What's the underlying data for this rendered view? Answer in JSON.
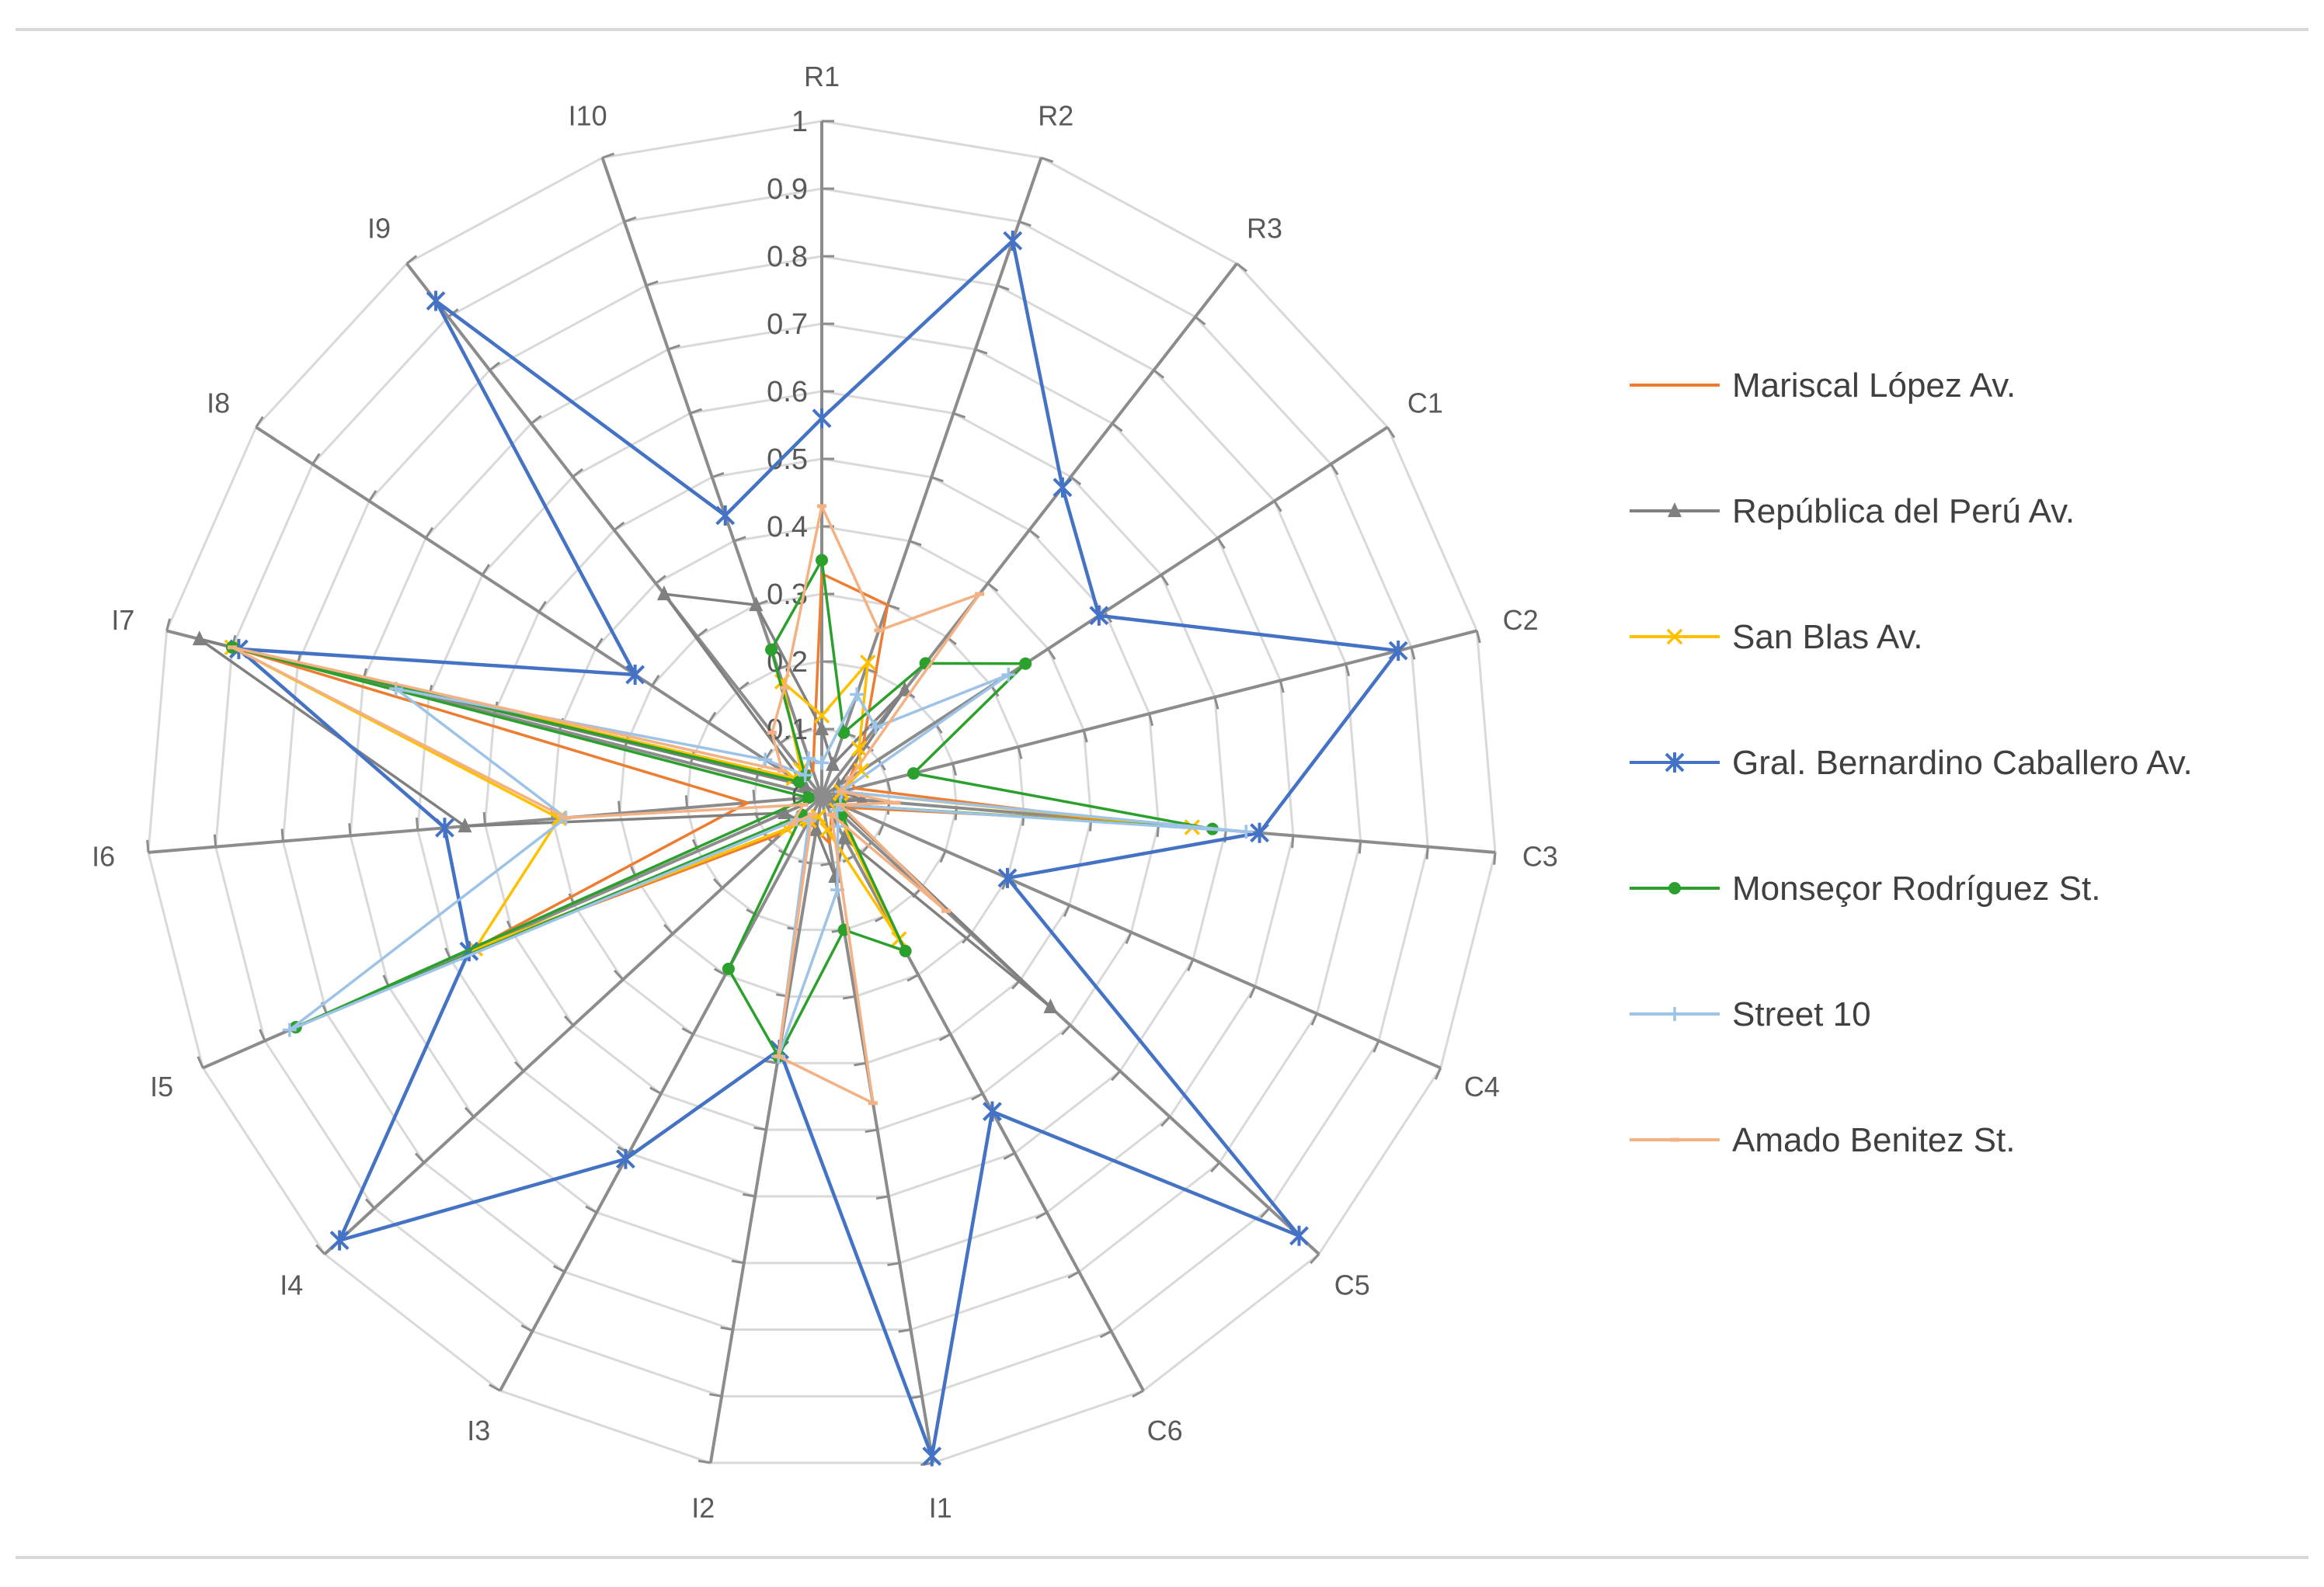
{
  "chart_data": {
    "type": "radar",
    "title": "",
    "axes": [
      "R1",
      "R2",
      "R3",
      "C1",
      "C2",
      "C3",
      "C4",
      "C5",
      "C6",
      "I1",
      "I2",
      "I3",
      "I4",
      "I5",
      "I6",
      "I7",
      "I8",
      "I9",
      "I10"
    ],
    "tick_values": [
      0,
      0.1,
      0.2,
      0.3,
      0.4,
      0.5,
      0.6,
      0.7,
      0.8,
      0.9,
      1
    ],
    "tick_labels": [
      "0",
      "0.1",
      "0.2",
      "0.3",
      "0.4",
      "0.5",
      "0.6",
      "0.7",
      "0.8",
      "0.9",
      "1"
    ],
    "range": [
      0,
      1
    ],
    "legend_position": "right",
    "series": [
      {
        "name": "Mariscal López Av.",
        "color": "#ed7d31",
        "marker": "none",
        "values": [
          0.33,
          0.3,
          0.1,
          0.05,
          0.05,
          0.44,
          0.04,
          0.04,
          0.03,
          0.07,
          0.05,
          0.03,
          0.08,
          0.57,
          0.11,
          0.9,
          0.05,
          0.05,
          0.04
        ]
      },
      {
        "name": "República del Perú Av.",
        "color": "#808080",
        "marker": "triangle",
        "values": [
          0.1,
          0.05,
          0.2,
          0.03,
          0.03,
          0.06,
          0.02,
          0.46,
          0.07,
          0.12,
          0.05,
          0.04,
          0.05,
          0.06,
          0.53,
          0.95,
          0.03,
          0.38,
          0.3
        ]
      },
      {
        "name": "San Blas Av.",
        "color": "#ffc000",
        "marker": "x",
        "values": [
          0.12,
          0.21,
          0.09,
          0.07,
          0.03,
          0.55,
          0.03,
          0.03,
          0.24,
          0.05,
          0.03,
          0.04,
          0.07,
          0.56,
          0.39,
          0.9,
          0.05,
          0.05,
          0.18
        ]
      },
      {
        "name": "Gral. Bernardino Caballero Av.",
        "color": "#4472c4",
        "marker": "star",
        "values": [
          0.56,
          0.87,
          0.58,
          0.49,
          0.88,
          0.65,
          0.3,
          0.96,
          0.53,
          0.99,
          0.38,
          0.61,
          0.97,
          0.57,
          0.56,
          0.89,
          0.33,
          0.93,
          0.44
        ]
      },
      {
        "name": "Monseçor Rodríguez St.",
        "color": "#2ca02c",
        "marker": "dot",
        "values": [
          0.35,
          0.1,
          0.25,
          0.36,
          0.14,
          0.58,
          0.03,
          0.04,
          0.26,
          0.2,
          0.39,
          0.29,
          0.04,
          0.85,
          0.02,
          0.9,
          0.04,
          0.04,
          0.23
        ]
      },
      {
        "name": "Street 10",
        "color": "#9dc3e6",
        "marker": "plus",
        "values": [
          0.05,
          0.16,
          0.13,
          0.33,
          0.03,
          0.63,
          0.03,
          0.03,
          0.05,
          0.14,
          0.39,
          0.04,
          0.05,
          0.86,
          0.38,
          0.65,
          0.1,
          0.04,
          0.06
        ]
      },
      {
        "name": "Amado Benitez St.",
        "color": "#f4b183",
        "marker": "dash",
        "values": [
          0.43,
          0.26,
          0.38,
          0.05,
          0.03,
          0.11,
          0.03,
          0.25,
          0.03,
          0.46,
          0.39,
          0.03,
          0.06,
          0.03,
          0.38,
          0.9,
          0.07,
          0.12,
          0.17
        ]
      }
    ]
  }
}
